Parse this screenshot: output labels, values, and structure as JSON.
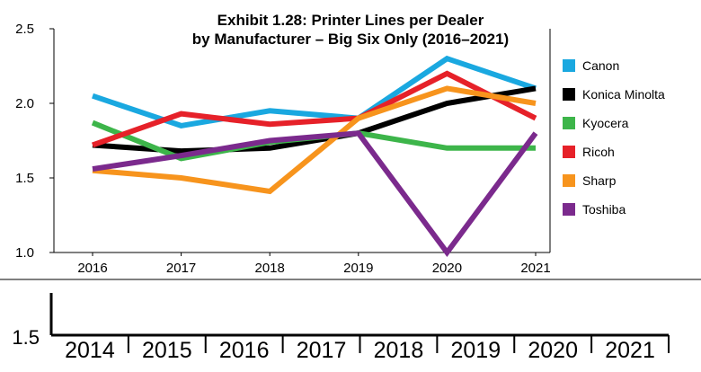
{
  "chart_data": [
    {
      "type": "line",
      "title": "Exhibit 1.28: Printer Lines per Dealer",
      "subtitle": "by Manufacturer – Big Six Only (2016–2021)",
      "categories": [
        "2016",
        "2017",
        "2018",
        "2019",
        "2020",
        "2021"
      ],
      "ylim": [
        1.0,
        2.5
      ],
      "yticks": [
        "1.0",
        "1.5",
        "2.0",
        "2.5"
      ],
      "legend_position": "right",
      "series": [
        {
          "name": "Canon",
          "color": "#1aa8e0",
          "values": [
            2.05,
            1.85,
            1.95,
            1.9,
            2.3,
            2.1
          ]
        },
        {
          "name": "Konica Minolta",
          "color": "#000000",
          "values": [
            1.72,
            1.68,
            1.7,
            1.8,
            2.0,
            2.1
          ]
        },
        {
          "name": "Kyocera",
          "color": "#3db54a",
          "values": [
            1.87,
            1.63,
            1.74,
            1.8,
            1.7,
            1.7
          ]
        },
        {
          "name": "Ricoh",
          "color": "#e62129",
          "values": [
            1.72,
            1.93,
            1.86,
            1.9,
            2.2,
            1.9
          ]
        },
        {
          "name": "Sharp",
          "color": "#f7941d",
          "values": [
            1.55,
            1.5,
            1.41,
            1.9,
            2.1,
            2.0
          ]
        },
        {
          "name": "Toshiba",
          "color": "#7b2a8d",
          "values": [
            1.56,
            1.65,
            1.75,
            1.8,
            1.0,
            1.8
          ]
        }
      ]
    },
    {
      "type": "line",
      "partial": true,
      "categories": [
        "2014",
        "2015",
        "2016",
        "2017",
        "2018",
        "2019",
        "2020",
        "2021"
      ],
      "yticks": [
        "1.5"
      ],
      "series": []
    }
  ]
}
